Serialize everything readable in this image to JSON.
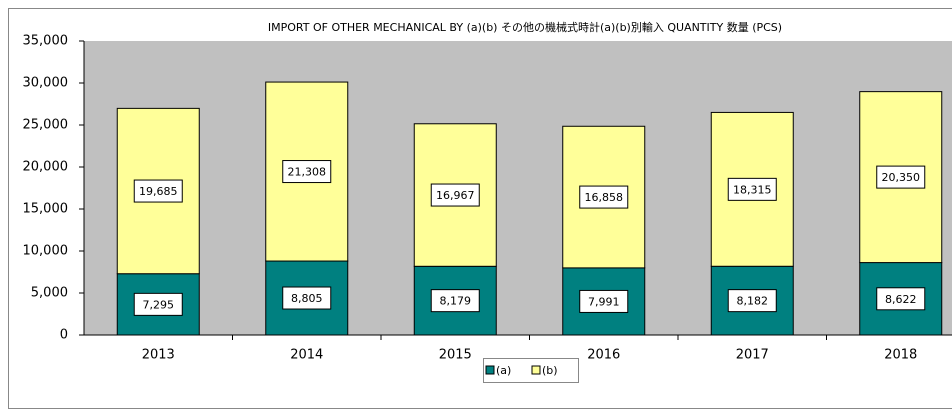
{
  "chart_data": {
    "type": "stacked_bar",
    "title": "IMPORT OF OTHER MECHANICAL BY (a)(b) その他の機械式時計(a)(b)別輸入  QUANTITY 数量 (PCS)",
    "categories": [
      "2013",
      "2014",
      "2015",
      "2016",
      "2017",
      "2018"
    ],
    "series": [
      {
        "name": "(a)",
        "color": "#008080",
        "values": [
          7295,
          8805,
          8179,
          7991,
          8182,
          8622
        ],
        "value_labels": [
          "7,295",
          "8,805",
          "8,179",
          "7,991",
          "8,182",
          "8,622"
        ]
      },
      {
        "name": "(b)",
        "color": "#ffff99",
        "values": [
          19685,
          21308,
          16967,
          16858,
          18315,
          20350
        ],
        "value_labels": [
          "19,685",
          "21,308",
          "16,967",
          "16,858",
          "18,315",
          "20,350"
        ]
      }
    ],
    "ylim": [
      0,
      35000
    ],
    "yticks": [
      0,
      {
        "value": 5000,
        "label": "5,000"
      },
      {
        "value": 10000,
        "label": "10,000"
      },
      {
        "value": 15000,
        "label": "15,000"
      },
      {
        "value": 20000,
        "label": "20,000"
      },
      {
        "value": 25000,
        "label": "25,000"
      },
      {
        "value": 30000,
        "label": "30,000"
      },
      {
        "value": 35000,
        "label": "35,000"
      }
    ],
    "plot_background": "#c0c0c0",
    "legend": "bottom"
  }
}
